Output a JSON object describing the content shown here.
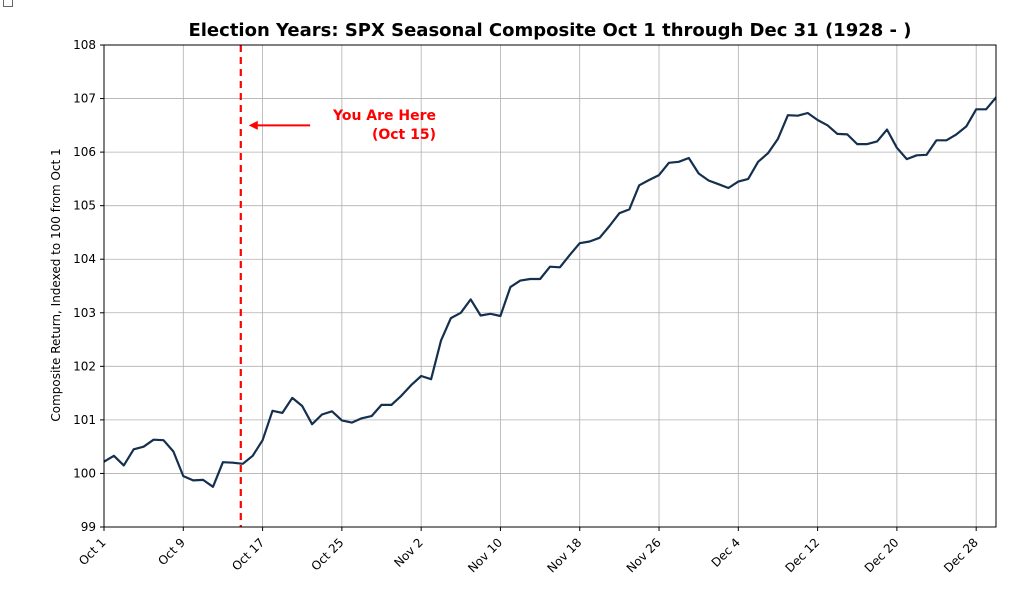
{
  "chart_data": {
    "type": "line",
    "title": "Election Years: SPX Seasonal Composite Oct 1 through Dec 31 (1928 - )",
    "xlabel": "",
    "ylabel": "Composite Return, Indexed to 100 from Oct 1",
    "ylim": [
      99,
      108
    ],
    "xlim": [
      0,
      90
    ],
    "yticks": [
      99,
      100,
      101,
      102,
      103,
      104,
      105,
      106,
      107,
      108
    ],
    "xtick_labels": [
      "Oct 1",
      "Oct 9",
      "Oct 17",
      "Oct 25",
      "Nov 2",
      "Nov 10",
      "Nov 18",
      "Nov 26",
      "Dec 4",
      "Dec 12",
      "Dec 20",
      "Dec 28"
    ],
    "xtick_day_index": [
      0,
      8,
      16,
      24,
      32,
      40,
      48,
      56,
      64,
      72,
      80,
      88
    ],
    "grid": true,
    "line_color": "#14304e",
    "series": [
      {
        "name": "",
        "points": [
          [
            0,
            100.22
          ],
          [
            1,
            100.33
          ],
          [
            2,
            100.15
          ],
          [
            3,
            100.45
          ],
          [
            4,
            100.5
          ],
          [
            5,
            100.63
          ],
          [
            6,
            100.62
          ],
          [
            7,
            100.41
          ],
          [
            8,
            99.95
          ],
          [
            9,
            99.87
          ],
          [
            10,
            99.88
          ],
          [
            11,
            99.75
          ],
          [
            12,
            100.21
          ],
          [
            13,
            100.2
          ],
          [
            14,
            100.18
          ],
          [
            15,
            100.33
          ],
          [
            16,
            100.62
          ],
          [
            17,
            101.17
          ],
          [
            18,
            101.13
          ],
          [
            19,
            101.41
          ],
          [
            20,
            101.26
          ],
          [
            21,
            100.92
          ],
          [
            22,
            101.1
          ],
          [
            23,
            101.16
          ],
          [
            24,
            100.99
          ],
          [
            25,
            100.95
          ],
          [
            26,
            101.03
          ],
          [
            27,
            101.07
          ],
          [
            28,
            101.28
          ],
          [
            29,
            101.28
          ],
          [
            30,
            101.45
          ],
          [
            31,
            101.65
          ],
          [
            32,
            101.82
          ],
          [
            33,
            101.76
          ],
          [
            34,
            102.48
          ],
          [
            35,
            102.9
          ],
          [
            36,
            103.0
          ],
          [
            37,
            103.25
          ],
          [
            38,
            102.95
          ],
          [
            39,
            102.98
          ],
          [
            40,
            102.94
          ],
          [
            41,
            103.48
          ],
          [
            42,
            103.6
          ],
          [
            43,
            103.63
          ],
          [
            44,
            103.63
          ],
          [
            45,
            103.86
          ],
          [
            46,
            103.85
          ],
          [
            47,
            104.08
          ],
          [
            48,
            104.3
          ],
          [
            49,
            104.33
          ],
          [
            50,
            104.4
          ],
          [
            51,
            104.62
          ],
          [
            52,
            104.86
          ],
          [
            53,
            104.93
          ],
          [
            54,
            105.38
          ],
          [
            55,
            105.48
          ],
          [
            56,
            105.57
          ],
          [
            57,
            105.8
          ],
          [
            58,
            105.82
          ],
          [
            59,
            105.89
          ],
          [
            60,
            105.6
          ],
          [
            61,
            105.47
          ],
          [
            62,
            105.4
          ],
          [
            63,
            105.33
          ],
          [
            64,
            105.45
          ],
          [
            65,
            105.5
          ],
          [
            66,
            105.82
          ],
          [
            67,
            105.98
          ],
          [
            68,
            106.25
          ],
          [
            69,
            106.69
          ],
          [
            70,
            106.68
          ],
          [
            71,
            106.73
          ],
          [
            72,
            106.6
          ],
          [
            73,
            106.5
          ],
          [
            74,
            106.34
          ],
          [
            75,
            106.33
          ],
          [
            76,
            106.15
          ],
          [
            77,
            106.15
          ],
          [
            78,
            106.2
          ],
          [
            79,
            106.42
          ],
          [
            80,
            106.08
          ],
          [
            81,
            105.87
          ],
          [
            82,
            105.94
          ],
          [
            83,
            105.95
          ],
          [
            84,
            106.22
          ],
          [
            85,
            106.22
          ],
          [
            86,
            106.33
          ],
          [
            87,
            106.48
          ],
          [
            88,
            106.8
          ],
          [
            89,
            106.8
          ],
          [
            90,
            107.02
          ],
          [
            91,
            107.27
          ]
        ]
      }
    ],
    "marker_line": {
      "x": 13.8,
      "color": "#ff0000",
      "style": "dashed"
    },
    "annotation": {
      "line1": "You Are Here",
      "line2": "(Oct 15)",
      "color": "#ff0000",
      "arrow_to": [
        13.8,
        106.5
      ],
      "arrow_from": [
        20.8,
        106.5
      ]
    }
  }
}
